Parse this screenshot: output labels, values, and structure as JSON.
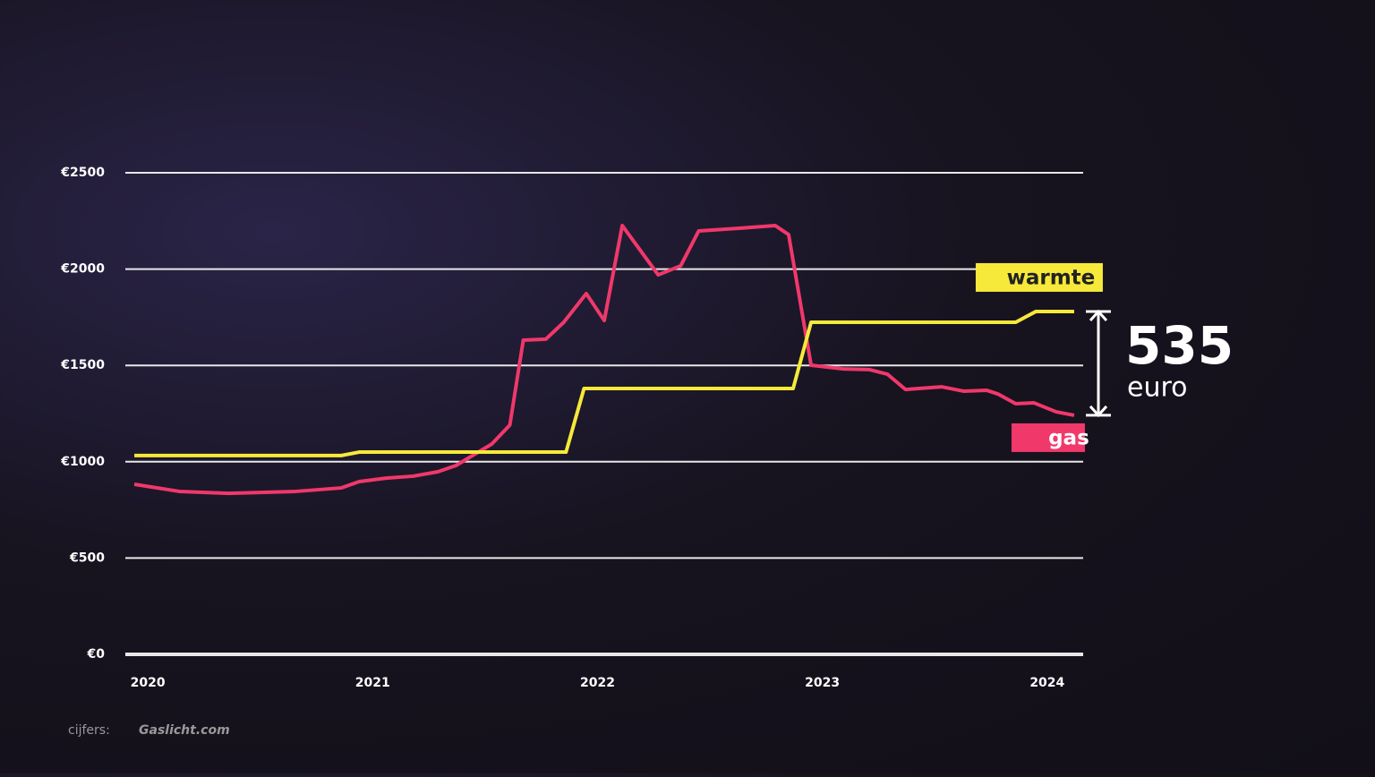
{
  "chart_data": {
    "type": "line",
    "xlim": [
      2019.9,
      2024.16
    ],
    "xticks": [
      2020,
      2021,
      2022,
      2023,
      2024
    ],
    "ylim": [
      0,
      2500
    ],
    "yticks": [
      {
        "value": 0,
        "label": "€0"
      },
      {
        "value": 500,
        "label": "€500"
      },
      {
        "value": 1000,
        "label": "€1000"
      },
      {
        "value": 1500,
        "label": "€1500"
      },
      {
        "value": 2000,
        "label": "€2000"
      },
      {
        "value": 2500,
        "label": "€2500"
      }
    ],
    "grid": true,
    "series": [
      {
        "name": "gas",
        "color": "#f0386b",
        "x": [
          2019.94,
          2020.14,
          2020.36,
          2020.66,
          2020.86,
          2020.94,
          2021.06,
          2021.18,
          2021.29,
          2021.37,
          2021.45,
          2021.53,
          2021.61,
          2021.67,
          2021.77,
          2021.85,
          2021.95,
          2022.03,
          2022.11,
          2022.27,
          2022.37,
          2022.45,
          2022.57,
          2022.63,
          2022.79,
          2022.85,
          2022.95,
          2023.09,
          2023.21,
          2023.29,
          2023.37,
          2023.53,
          2023.63,
          2023.73,
          2023.78,
          2023.86,
          2023.94,
          2024.04,
          2024.12
        ],
        "values": [
          883,
          846,
          836,
          846,
          864,
          897,
          915,
          925,
          948,
          980,
          1036,
          1092,
          1190,
          1631,
          1636,
          1724,
          1873,
          1733,
          2226,
          1970,
          2017,
          2198,
          2207,
          2212,
          2226,
          2179,
          1501,
          1482,
          1478,
          1454,
          1375,
          1389,
          1366,
          1371,
          1352,
          1301,
          1306,
          1259,
          1241
        ]
      },
      {
        "name": "warmte",
        "color": "#f7e93a",
        "x": [
          2019.94,
          2020.86,
          2020.94,
          2021.86,
          2021.94,
          2022.87,
          2022.95,
          2023.86,
          2023.95,
          2024.12
        ],
        "values": [
          1032,
          1032,
          1050,
          1050,
          1380,
          1380,
          1724,
          1724,
          1780,
          1780
        ]
      }
    ],
    "difference": {
      "value": "535",
      "unit": "euro"
    },
    "source": {
      "label": "cijfers:",
      "name": "Gaslicht.com"
    }
  }
}
